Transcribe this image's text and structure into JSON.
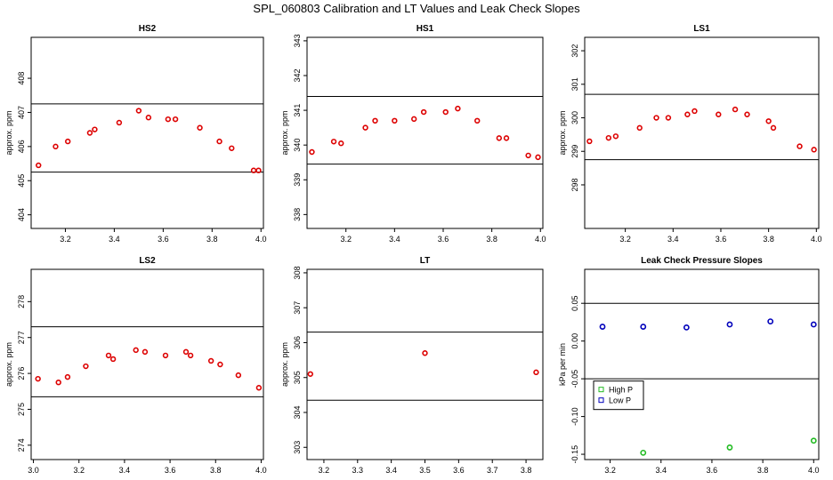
{
  "title": "SPL_060803  Calibration and LT Values and Leak Check Slopes",
  "colors": {
    "points": "#dd0000",
    "high_p": "#22bb22",
    "low_p": "#0000bb",
    "axes": "#000000"
  },
  "chart_data": [
    {
      "type": "scatter",
      "title": "HS2",
      "xlabel": "",
      "ylabel": "approx. ppm",
      "xlim": [
        3.06,
        4.01
      ],
      "ylim": [
        403.6,
        409.2
      ],
      "xticks": [
        3.2,
        3.4,
        3.6,
        3.8,
        4.0
      ],
      "xtick_labels": [
        "3.2",
        "3.4",
        "3.6",
        "3.8",
        "4.0"
      ],
      "yticks": [
        404,
        405,
        406,
        407,
        408
      ],
      "ytick_labels": [
        "404",
        "405",
        "406",
        "407",
        "408"
      ],
      "hlines": [
        407.25,
        405.25
      ],
      "x": [
        3.09,
        3.16,
        3.21,
        3.3,
        3.32,
        3.42,
        3.5,
        3.54,
        3.62,
        3.65,
        3.75,
        3.83,
        3.88,
        3.97,
        3.99
      ],
      "y": [
        405.45,
        406.0,
        406.15,
        406.4,
        406.5,
        406.7,
        407.05,
        406.85,
        406.8,
        406.8,
        406.55,
        406.15,
        405.95,
        405.3,
        405.3
      ]
    },
    {
      "type": "scatter",
      "title": "HS1",
      "xlabel": "",
      "ylabel": "approx. ppm",
      "xlim": [
        3.04,
        4.01
      ],
      "ylim": [
        337.6,
        343.1
      ],
      "xticks": [
        3.2,
        3.4,
        3.6,
        3.8,
        4.0
      ],
      "xtick_labels": [
        "3.2",
        "3.4",
        "3.6",
        "3.8",
        "4.0"
      ],
      "yticks": [
        338,
        339,
        340,
        341,
        342,
        343
      ],
      "ytick_labels": [
        "338",
        "339",
        "340",
        "341",
        "342",
        "343"
      ],
      "hlines": [
        341.4,
        339.45
      ],
      "x": [
        3.06,
        3.15,
        3.18,
        3.28,
        3.32,
        3.4,
        3.48,
        3.52,
        3.61,
        3.66,
        3.74,
        3.83,
        3.86,
        3.95,
        3.99
      ],
      "y": [
        339.8,
        340.1,
        340.05,
        340.5,
        340.7,
        340.7,
        340.75,
        340.95,
        340.95,
        341.05,
        340.7,
        340.2,
        340.2,
        339.7,
        339.65
      ]
    },
    {
      "type": "scatter",
      "title": "LS1",
      "xlabel": "",
      "ylabel": "approx. ppm",
      "xlim": [
        3.03,
        4.01
      ],
      "ylim": [
        296.7,
        302.4
      ],
      "xticks": [
        3.2,
        3.4,
        3.6,
        3.8,
        4.0
      ],
      "xtick_labels": [
        "3.2",
        "3.4",
        "3.6",
        "3.8",
        "4.0"
      ],
      "yticks": [
        298,
        299,
        300,
        301,
        302
      ],
      "ytick_labels": [
        "298",
        "299",
        "300",
        "301",
        "302"
      ],
      "hlines": [
        300.7,
        298.75
      ],
      "x": [
        3.05,
        3.13,
        3.16,
        3.26,
        3.33,
        3.38,
        3.46,
        3.49,
        3.59,
        3.66,
        3.71,
        3.8,
        3.82,
        3.93,
        3.99
      ],
      "y": [
        299.3,
        299.4,
        299.45,
        299.7,
        300.0,
        300.0,
        300.1,
        300.2,
        300.1,
        300.25,
        300.1,
        299.9,
        299.7,
        299.15,
        299.05
      ]
    },
    {
      "type": "scatter",
      "title": "LS2",
      "xlabel": "",
      "ylabel": "approx. ppm",
      "xlim": [
        2.99,
        4.01
      ],
      "ylim": [
        273.6,
        278.9
      ],
      "xticks": [
        3.0,
        3.2,
        3.4,
        3.6,
        3.8,
        4.0
      ],
      "xtick_labels": [
        "3.0",
        "3.2",
        "3.4",
        "3.6",
        "3.8",
        "4.0"
      ],
      "yticks": [
        274,
        275,
        276,
        277,
        278
      ],
      "ytick_labels": [
        "274",
        "275",
        "276",
        "277",
        "278"
      ],
      "hlines": [
        277.3,
        275.35
      ],
      "x": [
        3.02,
        3.11,
        3.15,
        3.23,
        3.33,
        3.35,
        3.45,
        3.49,
        3.58,
        3.67,
        3.69,
        3.78,
        3.82,
        3.9,
        3.99
      ],
      "y": [
        275.85,
        275.75,
        275.9,
        276.2,
        276.5,
        276.4,
        276.65,
        276.6,
        276.5,
        276.6,
        276.5,
        276.35,
        276.25,
        275.95,
        275.6
      ]
    },
    {
      "type": "scatter",
      "title": "LT",
      "xlabel": "",
      "ylabel": "approx. ppm",
      "xlim": [
        3.15,
        3.85
      ],
      "ylim": [
        302.65,
        308.1
      ],
      "xticks": [
        3.2,
        3.3,
        3.4,
        3.5,
        3.6,
        3.7,
        3.8
      ],
      "xtick_labels": [
        "3.2",
        "3.3",
        "3.4",
        "3.5",
        "3.6",
        "3.7",
        "3.8"
      ],
      "yticks": [
        303,
        304,
        305,
        306,
        307,
        308
      ],
      "ytick_labels": [
        "303",
        "304",
        "305",
        "306",
        "307",
        "308"
      ],
      "hlines": [
        306.3,
        304.35
      ],
      "x": [
        3.16,
        3.5,
        3.83
      ],
      "y": [
        305.1,
        305.7,
        305.15
      ]
    },
    {
      "type": "scatter",
      "title": "Leak Check Pressure Slopes",
      "xlabel": "",
      "ylabel": "kPa per min",
      "xlim": [
        3.1,
        4.02
      ],
      "ylim": [
        -0.157,
        0.095
      ],
      "xticks": [
        3.2,
        3.4,
        3.6,
        3.8,
        4.0
      ],
      "xtick_labels": [
        "3.2",
        "3.4",
        "3.6",
        "3.8",
        "4.0"
      ],
      "yticks": [
        -0.15,
        -0.1,
        -0.05,
        0.0,
        0.05
      ],
      "ytick_labels": [
        "-0.15",
        "-0.10",
        "-0.05",
        "0.00",
        "0.05"
      ],
      "hlines": [
        0.05,
        -0.05
      ],
      "series": [
        {
          "name": "High P",
          "x": [
            3.33,
            3.67,
            4.0
          ],
          "y": [
            -0.148,
            -0.141,
            -0.132
          ]
        },
        {
          "name": "Low P",
          "x": [
            3.17,
            3.33,
            3.5,
            3.67,
            3.83,
            4.0
          ],
          "y": [
            0.019,
            0.019,
            0.018,
            0.022,
            0.026,
            0.022
          ]
        }
      ],
      "legend_position": "lower-left"
    }
  ]
}
